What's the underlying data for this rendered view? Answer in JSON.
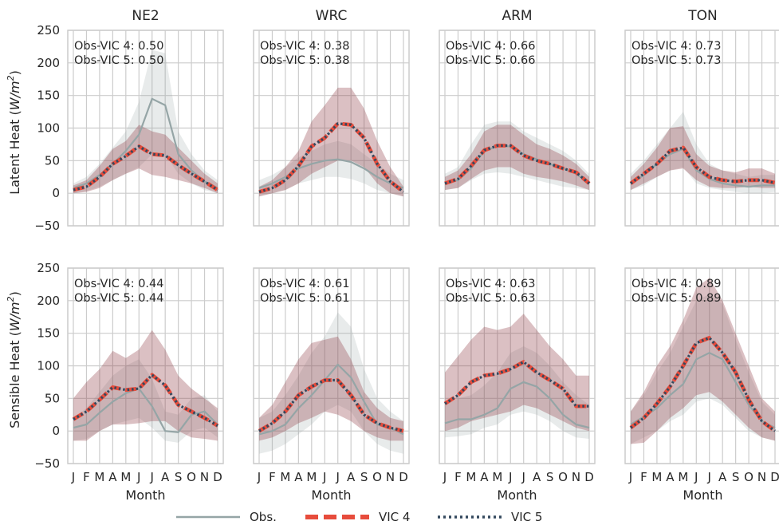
{
  "colors": {
    "obs": "#95a5a6",
    "vic4": "#e74c3c",
    "vic5": "#34495e",
    "model_band": "#8e3a45",
    "obs_band": "#95a5a6",
    "grid": "#cccccc"
  },
  "legend": [
    {
      "key": "obs",
      "label": "Obs."
    },
    {
      "key": "vic4",
      "label": "VIC 4"
    },
    {
      "key": "vic5",
      "label": "VIC 5"
    }
  ],
  "chart_data": {
    "type": "line",
    "x_categories": [
      "J",
      "F",
      "M",
      "A",
      "M",
      "J",
      "J",
      "A",
      "S",
      "O",
      "N",
      "D"
    ],
    "xlabel": "Month",
    "ylim": [
      -50,
      250
    ],
    "yticks": [
      -50,
      0,
      50,
      100,
      150,
      200,
      250
    ],
    "grid": true,
    "legend_position": "bottom-center",
    "columns": [
      "NE2",
      "WRC",
      "ARM",
      "TON"
    ],
    "rows": [
      {
        "ylabel": "Latent Heat (W/m²)",
        "ylabel_parts": {
          "prefix": "Latent Heat (",
          "unit_base": "W/m",
          "unit_exp": "2",
          "suffix": ")"
        },
        "panels": [
          {
            "site": "NE2",
            "corr_lines": [
              "Obs-VIC 4: 0.50",
              "Obs-VIC 5: 0.50"
            ],
            "obs": [
              8,
              15,
              28,
              45,
              65,
              90,
              145,
              135,
              60,
              35,
              18,
              8
            ],
            "obs_band_low": [
              0,
              3,
              10,
              20,
              30,
              40,
              60,
              60,
              30,
              15,
              5,
              0
            ],
            "obs_band_high": [
              15,
              25,
              45,
              70,
              95,
              140,
              220,
              215,
              95,
              60,
              35,
              20
            ],
            "vic4": [
              5,
              10,
              25,
              45,
              57,
              72,
              60,
              58,
              43,
              30,
              18,
              5
            ],
            "vic5": [
              5,
              10,
              25,
              45,
              57,
              72,
              60,
              58,
              43,
              30,
              18,
              5
            ],
            "model_band_low": [
              0,
              2,
              8,
              20,
              30,
              38,
              28,
              25,
              20,
              15,
              8,
              0
            ],
            "model_band_high": [
              12,
              20,
              42,
              68,
              80,
              105,
              95,
              90,
              70,
              50,
              30,
              15
            ]
          },
          {
            "site": "WRC",
            "corr_lines": [
              "Obs-VIC 4: 0.38",
              "Obs-VIC 5: 0.38"
            ],
            "obs": [
              8,
              15,
              25,
              38,
              45,
              50,
              52,
              48,
              38,
              25,
              15,
              8
            ],
            "obs_band_low": [
              -5,
              0,
              5,
              15,
              20,
              25,
              25,
              22,
              15,
              5,
              0,
              -5
            ],
            "obs_band_high": [
              20,
              28,
              40,
              55,
              65,
              75,
              80,
              75,
              60,
              45,
              30,
              20
            ],
            "vic4": [
              2,
              8,
              20,
              42,
              72,
              85,
              107,
              105,
              85,
              45,
              18,
              2
            ],
            "vic5": [
              2,
              8,
              20,
              42,
              72,
              85,
              107,
              105,
              85,
              45,
              18,
              2
            ],
            "model_band_low": [
              -5,
              0,
              5,
              15,
              30,
              40,
              50,
              50,
              40,
              15,
              0,
              -5
            ],
            "model_band_high": [
              10,
              20,
              40,
              65,
              110,
              135,
              162,
              162,
              130,
              80,
              40,
              10
            ]
          },
          {
            "site": "ARM",
            "corr_lines": [
              "Obs-VIC 4: 0.66",
              "Obs-VIC 5: 0.66"
            ],
            "obs": [
              15,
              20,
              38,
              65,
              72,
              72,
              60,
              52,
              45,
              38,
              30,
              15
            ],
            "obs_band_low": [
              5,
              8,
              20,
              30,
              32,
              30,
              25,
              20,
              15,
              10,
              8,
              5
            ],
            "obs_band_high": [
              30,
              40,
              75,
              105,
              110,
              110,
              95,
              85,
              75,
              65,
              50,
              30
            ],
            "vic4": [
              15,
              22,
              42,
              66,
              73,
              73,
              58,
              50,
              45,
              38,
              32,
              15
            ],
            "vic5": [
              15,
              22,
              42,
              66,
              73,
              73,
              58,
              50,
              45,
              38,
              32,
              15
            ],
            "model_band_low": [
              5,
              8,
              22,
              35,
              40,
              40,
              30,
              25,
              22,
              18,
              12,
              5
            ],
            "model_band_high": [
              25,
              35,
              60,
              95,
              105,
              105,
              90,
              75,
              68,
              58,
              45,
              25
            ]
          },
          {
            "site": "TON",
            "corr_lines": [
              "Obs-VIC 4: 0.73",
              "Obs-VIC 5: 0.73"
            ],
            "obs": [
              15,
              28,
              45,
              60,
              68,
              35,
              22,
              15,
              12,
              10,
              12,
              12
            ],
            "obs_band_low": [
              5,
              12,
              25,
              35,
              40,
              15,
              8,
              5,
              2,
              0,
              0,
              2
            ],
            "obs_band_high": [
              30,
              50,
              75,
              100,
              125,
              75,
              45,
              35,
              30,
              25,
              28,
              28
            ],
            "vic4": [
              15,
              30,
              45,
              65,
              70,
              40,
              25,
              20,
              18,
              20,
              20,
              16
            ],
            "vic5": [
              15,
              30,
              45,
              65,
              70,
              40,
              25,
              20,
              18,
              20,
              20,
              16
            ],
            "model_band_low": [
              5,
              15,
              25,
              35,
              38,
              20,
              10,
              8,
              8,
              10,
              8,
              8
            ],
            "model_band_high": [
              25,
              45,
              70,
              100,
              103,
              60,
              42,
              35,
              32,
              38,
              38,
              30
            ]
          }
        ]
      },
      {
        "ylabel": "Sensible Heat (W/m²)",
        "ylabel_parts": {
          "prefix": "Sensible Heat (",
          "unit_base": "W/m",
          "unit_exp": "2",
          "suffix": ")"
        },
        "panels": [
          {
            "site": "NE2",
            "corr_lines": [
              "Obs-VIC 4: 0.44",
              "Obs-VIC 5: 0.44"
            ],
            "obs": [
              5,
              10,
              28,
              45,
              58,
              65,
              38,
              0,
              -2,
              25,
              30,
              10
            ],
            "obs_band_low": [
              -15,
              -12,
              0,
              10,
              15,
              20,
              5,
              -15,
              -18,
              0,
              5,
              -10
            ],
            "obs_band_high": [
              20,
              35,
              60,
              85,
              100,
              110,
              80,
              30,
              25,
              50,
              55,
              30
            ],
            "vic4": [
              18,
              30,
              48,
              67,
              63,
              65,
              86,
              70,
              40,
              30,
              20,
              8
            ],
            "vic5": [
              18,
              30,
              48,
              67,
              63,
              65,
              86,
              70,
              40,
              30,
              20,
              8
            ],
            "model_band_low": [
              -15,
              -15,
              0,
              10,
              10,
              12,
              15,
              15,
              0,
              -10,
              -12,
              -15
            ],
            "model_band_high": [
              50,
              75,
              95,
              123,
              112,
              125,
              155,
              125,
              85,
              65,
              50,
              35
            ]
          },
          {
            "site": "WRC",
            "corr_lines": [
              "Obs-VIC 4: 0.61",
              "Obs-VIC 5: 0.61"
            ],
            "obs": [
              -5,
              0,
              10,
              35,
              55,
              78,
              102,
              82,
              45,
              10,
              5,
              -5
            ],
            "obs_band_low": [
              -35,
              -30,
              -20,
              -5,
              10,
              30,
              40,
              30,
              0,
              -20,
              -30,
              -35
            ],
            "obs_band_high": [
              20,
              30,
              55,
              85,
              120,
              145,
              182,
              160,
              95,
              50,
              30,
              15
            ],
            "vic4": [
              0,
              12,
              30,
              55,
              68,
              78,
              78,
              55,
              25,
              12,
              5,
              0
            ],
            "vic5": [
              0,
              12,
              30,
              55,
              68,
              78,
              78,
              55,
              25,
              12,
              5,
              0
            ],
            "model_band_low": [
              -15,
              -10,
              0,
              12,
              20,
              30,
              25,
              15,
              0,
              -10,
              -15,
              -15
            ],
            "model_band_high": [
              20,
              40,
              75,
              110,
              135,
              140,
              145,
              110,
              60,
              35,
              20,
              15
            ]
          },
          {
            "site": "ARM",
            "corr_lines": [
              "Obs-VIC 4: 0.63",
              "Obs-VIC 5: 0.63"
            ],
            "obs": [
              12,
              18,
              18,
              25,
              35,
              65,
              75,
              68,
              50,
              25,
              10,
              5
            ],
            "obs_band_low": [
              -10,
              -8,
              -5,
              5,
              10,
              25,
              30,
              25,
              15,
              0,
              -10,
              -12
            ],
            "obs_band_high": [
              40,
              50,
              55,
              70,
              90,
              120,
              130,
              120,
              100,
              75,
              55,
              40
            ],
            "vic4": [
              42,
              55,
              75,
              85,
              88,
              95,
              106,
              90,
              78,
              65,
              38,
              38
            ],
            "vic5": [
              42,
              55,
              75,
              85,
              88,
              95,
              106,
              90,
              78,
              65,
              38,
              38
            ],
            "model_band_low": [
              0,
              5,
              15,
              20,
              25,
              30,
              40,
              35,
              25,
              15,
              5,
              0
            ],
            "model_band_high": [
              90,
              115,
              140,
              160,
              155,
              160,
              180,
              155,
              130,
              110,
              85,
              85
            ]
          },
          {
            "site": "TON",
            "corr_lines": [
              "Obs-VIC 4: 0.89",
              "Obs-VIC 5: 0.89"
            ],
            "obs": [
              10,
              22,
              35,
              55,
              72,
              110,
              120,
              110,
              75,
              40,
              15,
              5
            ],
            "obs_band_low": [
              -20,
              -10,
              0,
              15,
              25,
              45,
              50,
              40,
              20,
              0,
              -10,
              -15
            ],
            "obs_band_high": [
              30,
              55,
              90,
              120,
              160,
              200,
              210,
              195,
              140,
              90,
              45,
              25
            ],
            "vic4": [
              5,
              20,
              42,
              68,
              100,
              135,
              143,
              120,
              90,
              48,
              15,
              0
            ],
            "vic5": [
              5,
              20,
              42,
              68,
              100,
              135,
              143,
              120,
              90,
              48,
              15,
              0
            ],
            "model_band_low": [
              -20,
              -18,
              0,
              20,
              35,
              55,
              60,
              45,
              25,
              5,
              -10,
              -15
            ],
            "model_band_high": [
              30,
              60,
              100,
              130,
              170,
              220,
              235,
              200,
              150,
              100,
              50,
              30
            ]
          }
        ]
      }
    ]
  }
}
